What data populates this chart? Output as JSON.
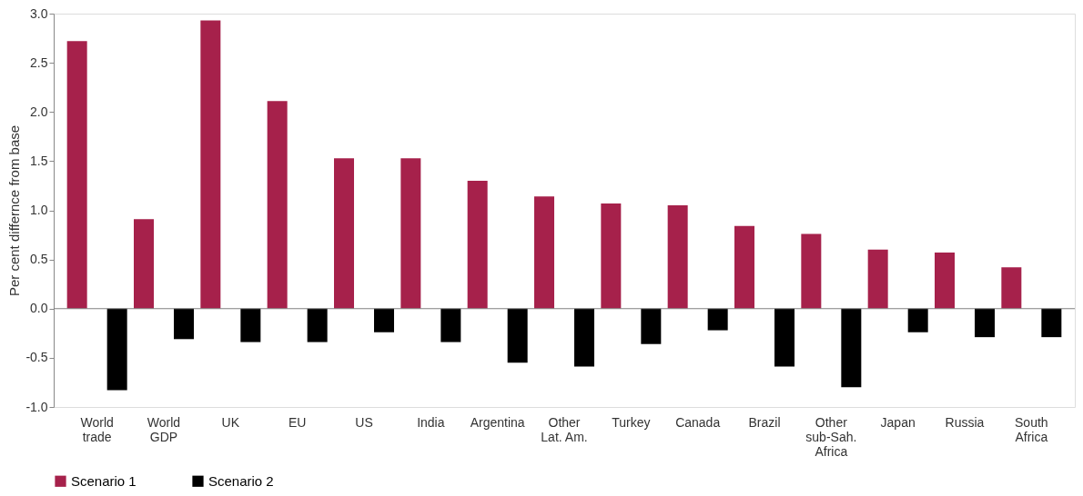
{
  "chart_data": {
    "type": "bar",
    "ylabel": "Per cent differnce from base",
    "categories": [
      "World\ntrade",
      "World\nGDP",
      "UK",
      "EU",
      "US",
      "India",
      "Argentina",
      "Other\nLat. Am.",
      "Turkey",
      "Canada",
      "Brazil",
      "Other\nsub-Sah.\nAfrica",
      "Japan",
      "Russia",
      "South\nAfrica"
    ],
    "series": [
      {
        "name": "Scenario 1",
        "color": "#a6214b",
        "values": [
          2.72,
          0.91,
          2.93,
          2.11,
          1.53,
          1.53,
          1.3,
          1.14,
          1.07,
          1.05,
          0.84,
          0.76,
          0.6,
          0.57,
          0.42
        ]
      },
      {
        "name": "Scenario 2",
        "color": "#000000",
        "values": [
          -0.83,
          -0.31,
          -0.34,
          -0.34,
          -0.24,
          -0.34,
          -0.55,
          -0.59,
          -0.36,
          -0.22,
          -0.59,
          -0.8,
          -0.24,
          -0.29,
          -0.29
        ]
      }
    ],
    "ylim": [
      -1.0,
      3.0
    ],
    "yticks": [
      {
        "value": -1.0,
        "label": "-1.0"
      },
      {
        "value": -0.5,
        "label": "-0.5"
      },
      {
        "value": 0,
        "label": "0.0"
      },
      {
        "value": 0.5,
        "label": "0.5"
      },
      {
        "value": 1.0,
        "label": "1.0"
      },
      {
        "value": 1.5,
        "label": "1.5"
      },
      {
        "value": 2.0,
        "label": "2.0"
      },
      {
        "value": 2.5,
        "label": "2.5"
      },
      {
        "value": 3.0,
        "label": "3.0"
      }
    ],
    "ref_lines": [
      {
        "axis": "y",
        "value": 0,
        "color": "#808080"
      }
    ],
    "grid": false,
    "legend": "bottom"
  }
}
